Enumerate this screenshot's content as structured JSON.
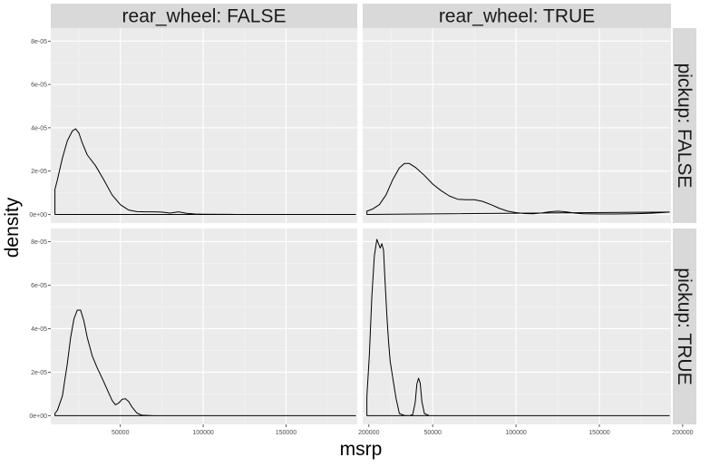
{
  "chart_data": {
    "type": "area",
    "facet_type": "grid",
    "xlabel": "msrp",
    "ylabel": "density",
    "xlim": [
      8000,
      193000
    ],
    "ylim": [
      -4e-06,
      8.6e-05
    ],
    "x_ticks": [
      50000,
      100000,
      150000,
      200000
    ],
    "x_tick_labels": [
      "50000",
      "100000",
      "150000",
      "200000"
    ],
    "y_ticks": [
      0,
      2e-05,
      4e-05,
      6e-05,
      8e-05
    ],
    "y_tick_labels": [
      "0e+00",
      "2e-05",
      "4e-05",
      "6e-05",
      "8e-05"
    ],
    "col_strip_labels": [
      "rear_wheel: FALSE",
      "rear_wheel: TRUE"
    ],
    "row_strip_labels": [
      "pickup: FALSE",
      "pickup: TRUE"
    ],
    "colors": {
      "panel_bg": "#ebebeb",
      "grid_major": "#ffffff",
      "grid_minor": "#f5f5f5",
      "strip_bg": "#d9d9d9",
      "line": "#000000"
    },
    "panels": [
      {
        "row": 0,
        "col": 0,
        "x": [
          10500,
          10500,
          12000,
          15000,
          18000,
          21000,
          23000,
          25000,
          27000,
          30000,
          35000,
          40000,
          45000,
          50000,
          55000,
          60000,
          65000,
          70000,
          75000,
          80000,
          85000,
          90000,
          95000,
          100000,
          120000,
          150000,
          180000,
          192000
        ],
        "y": [
          0,
          1.15e-05,
          1.6e-05,
          2.6e-05,
          3.4e-05,
          3.85e-05,
          3.95e-05,
          3.75e-05,
          3.3e-05,
          2.75e-05,
          2.25e-05,
          1.6e-05,
          9e-06,
          4.5e-06,
          2e-06,
          1.3e-06,
          1.2e-06,
          1.2e-06,
          1.1e-06,
          6e-07,
          1.2e-06,
          5e-07,
          2e-07,
          1e-07,
          0,
          0,
          0,
          0
        ]
      },
      {
        "row": 0,
        "col": 1,
        "x": [
          10500,
          10500,
          14000,
          18000,
          22000,
          26000,
          30000,
          33000,
          36000,
          40000,
          45000,
          50000,
          55000,
          60000,
          65000,
          70000,
          75000,
          80000,
          85000,
          90000,
          95000,
          100000,
          105000,
          110000,
          115000,
          120000,
          125000,
          130000,
          135000,
          140000,
          150000,
          160000,
          170000,
          180000,
          187000,
          192000
        ],
        "y": [
          0,
          1.5e-06,
          2.5e-06,
          4.5e-06,
          9e-06,
          1.6e-05,
          2.15e-05,
          2.35e-05,
          2.35e-05,
          2.15e-05,
          1.8e-05,
          1.4e-05,
          1.1e-05,
          8.5e-06,
          7e-06,
          6.8e-06,
          6.8e-06,
          6e-06,
          4.5e-06,
          2.8e-06,
          1.5e-06,
          8e-07,
          4e-07,
          3e-07,
          6e-07,
          1.2e-06,
          1.5e-06,
          1.2e-06,
          6e-07,
          3e-07,
          2e-07,
          2e-07,
          3e-07,
          5e-07,
          8e-07,
          1.1e-06
        ]
      },
      {
        "row": 1,
        "col": 0,
        "x": [
          10500,
          10500,
          12000,
          15000,
          18000,
          20000,
          22000,
          24000,
          26000,
          28000,
          30000,
          33000,
          36000,
          40000,
          45000,
          47000,
          49000,
          51000,
          53000,
          55000,
          57000,
          60000,
          63000,
          70000,
          100000,
          150000,
          192000
        ],
        "y": [
          0,
          1e-06,
          2.5e-06,
          9e-06,
          2.4e-05,
          3.6e-05,
          4.45e-05,
          4.85e-05,
          4.85e-05,
          4.35e-05,
          3.6e-05,
          2.75e-05,
          2.2e-05,
          1.55e-05,
          7e-06,
          5e-06,
          5.8e-06,
          7.5e-06,
          7.8e-06,
          6.5e-06,
          4e-06,
          1.2e-06,
          2e-07,
          0,
          0,
          0,
          0
        ]
      },
      {
        "row": 1,
        "col": 1,
        "x": [
          10500,
          10500,
          12000,
          13500,
          15000,
          16500,
          17500,
          18500,
          19500,
          20500,
          21500,
          22500,
          23500,
          24500,
          26000,
          28000,
          30000,
          33000,
          36000,
          38000,
          39500,
          40500,
          41500,
          42500,
          43500,
          45000,
          48000,
          60000,
          100000,
          150000,
          192000
        ],
        "y": [
          0,
          8.5e-06,
          2.8e-05,
          5.5e-05,
          7.35e-05,
          8.1e-05,
          7.9e-05,
          7.7e-05,
          7.9e-05,
          7.6e-05,
          6.05e-05,
          4.6e-05,
          3.4e-05,
          2.5e-05,
          1.75e-05,
          8e-06,
          1e-06,
          1e-07,
          0,
          5e-07,
          6e-06,
          1.45e-05,
          1.72e-05,
          1.5e-05,
          6.5e-06,
          1e-06,
          0,
          0,
          0,
          0,
          0
        ]
      }
    ]
  }
}
